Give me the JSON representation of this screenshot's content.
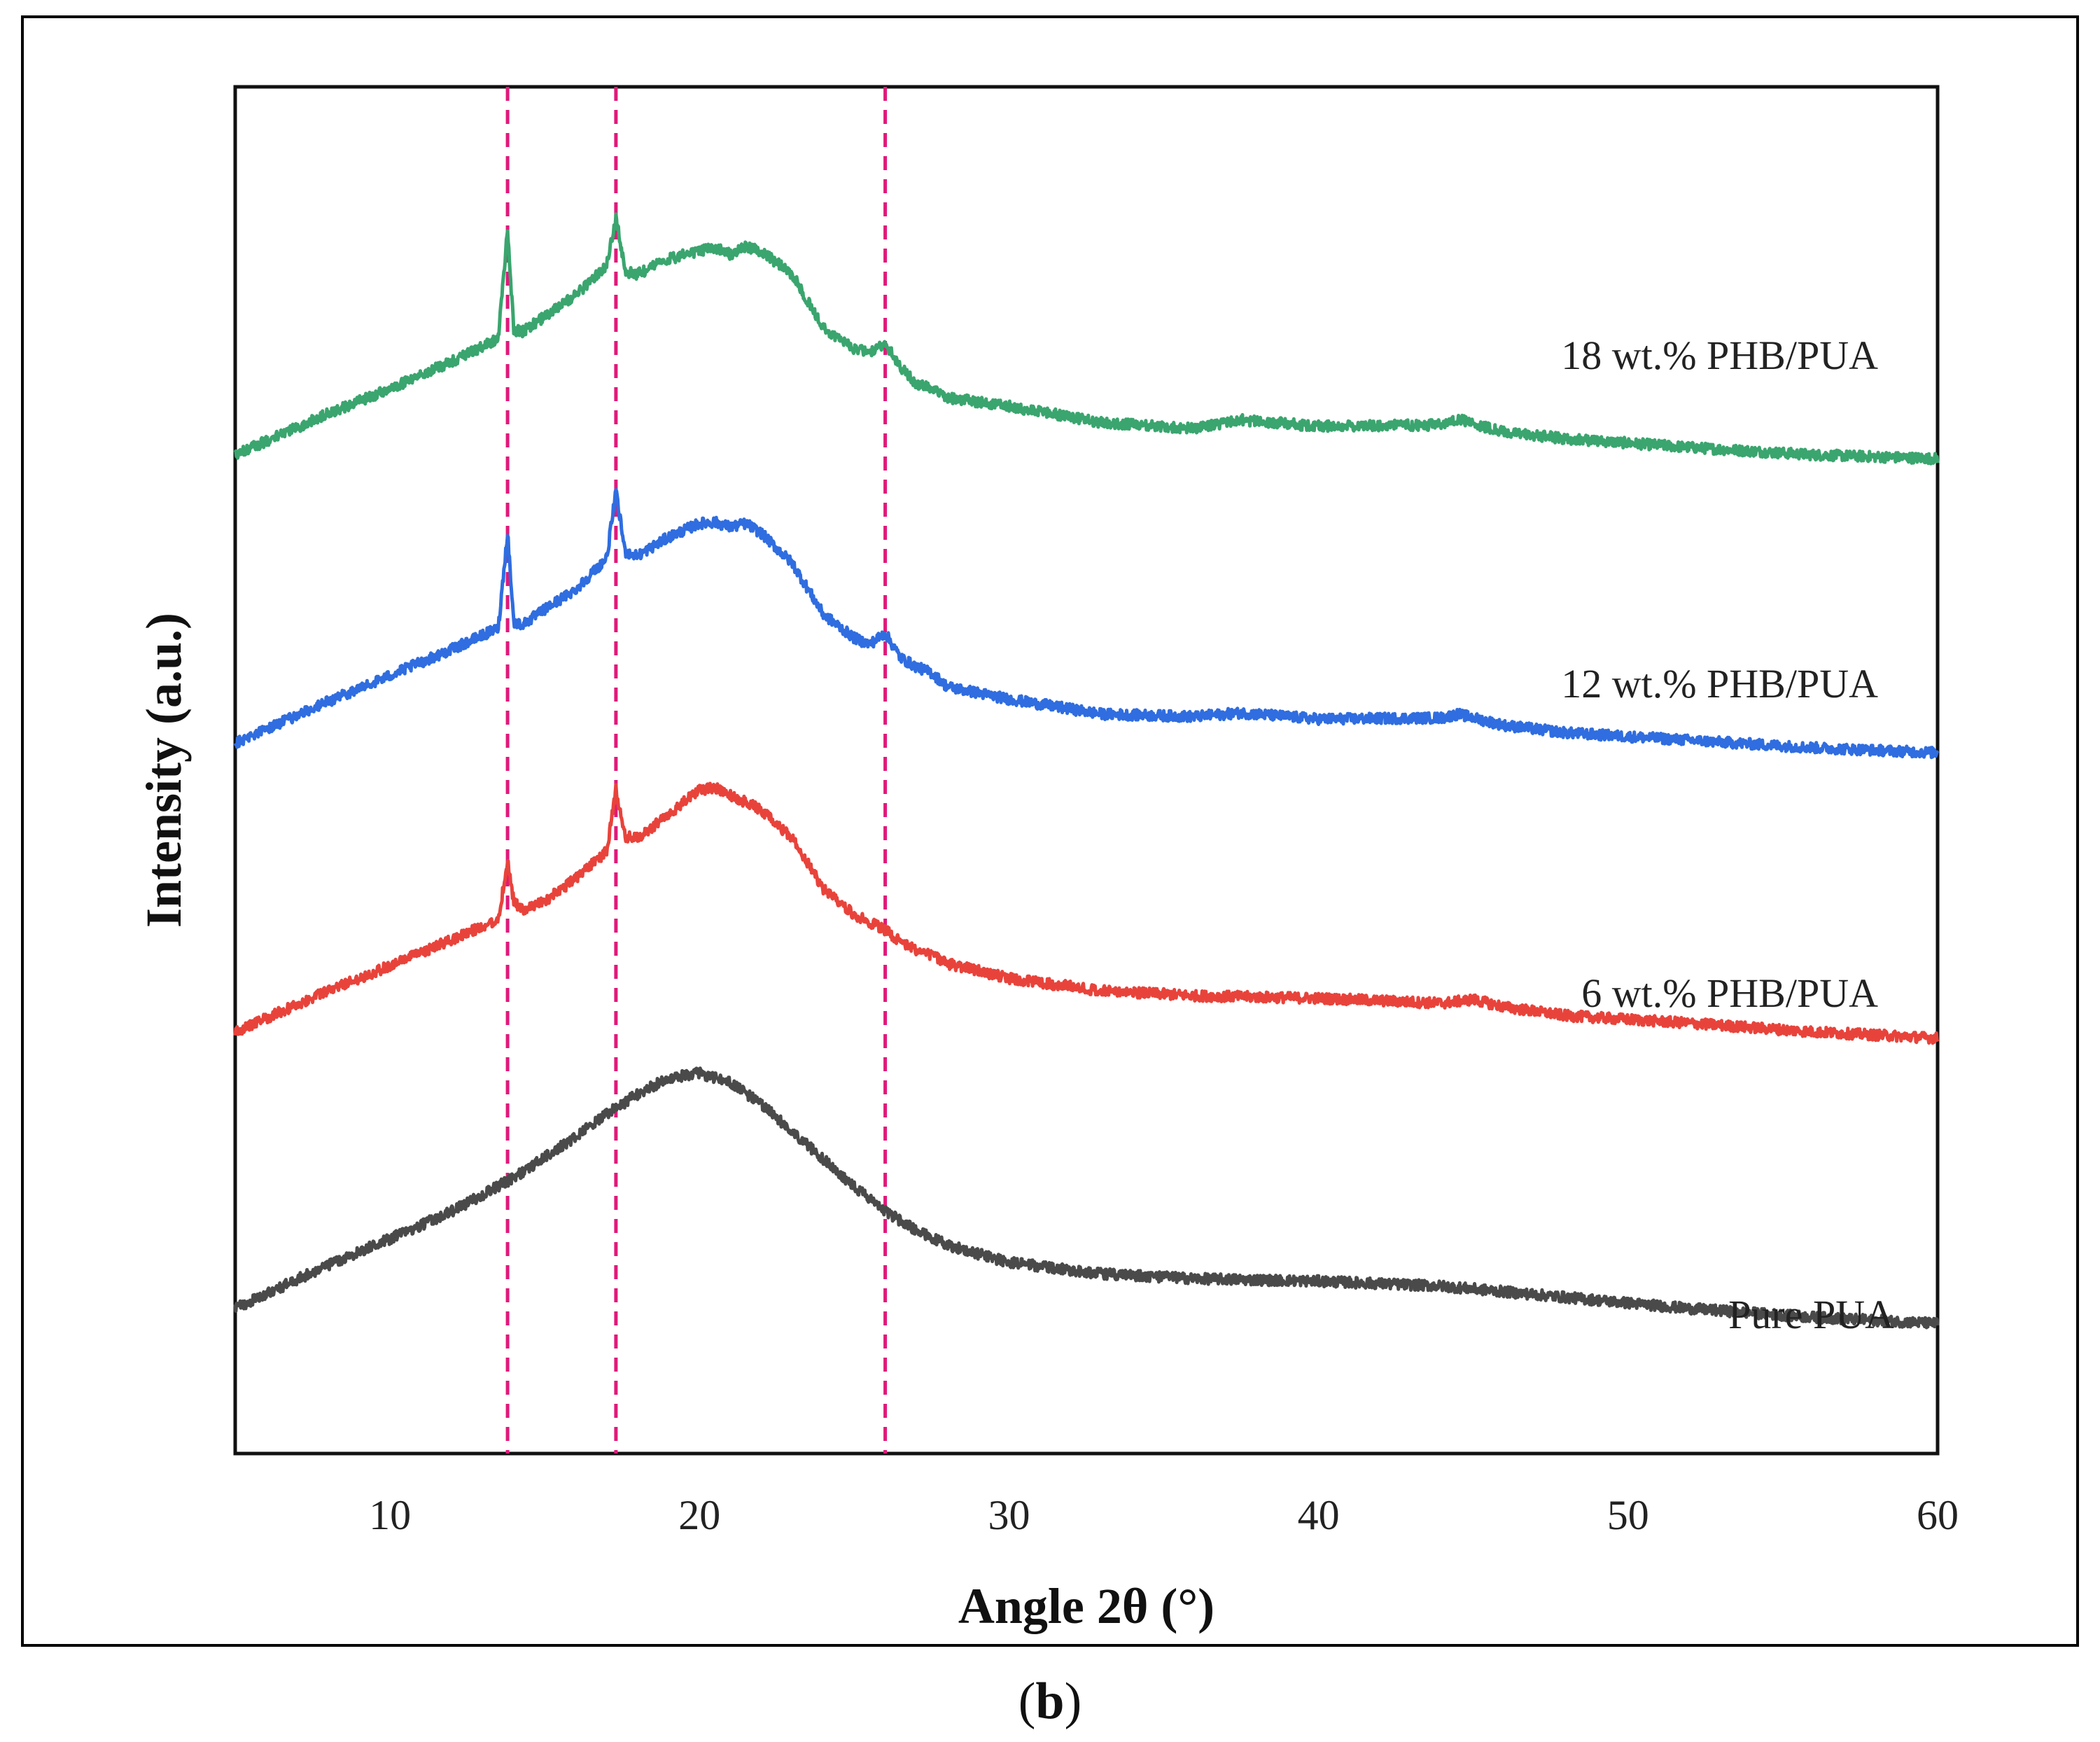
{
  "chart_data": {
    "type": "line",
    "title": "",
    "xlabel": "Angle 2θ  (°)",
    "ylabel": "Intensity (a.u.)",
    "xlim": [
      5,
      60
    ],
    "ylim": [
      0,
      1
    ],
    "xticks": [
      10,
      20,
      30,
      40,
      50,
      60
    ],
    "xtick_labels": [
      "10",
      "20",
      "30",
      "40",
      "50",
      "60"
    ],
    "yticks": [],
    "grid": false,
    "reference_lines": [
      {
        "x": 13.8,
        "color": "#e0197a",
        "style": "dashed"
      },
      {
        "x": 17.3,
        "color": "#e0197a",
        "style": "dashed"
      },
      {
        "x": 26.0,
        "color": "#e0197a",
        "style": "dashed"
      }
    ],
    "series": [
      {
        "name": "Pure PUA",
        "color": "#4a4a4a",
        "x": [
          5,
          8,
          10,
          12,
          14,
          16,
          17,
          18,
          19,
          20,
          21,
          22,
          23,
          24,
          25,
          26,
          27,
          28,
          30,
          33,
          36,
          40,
          44,
          48,
          52,
          56,
          60
        ],
        "y": [
          0.068,
          0.103,
          0.124,
          0.146,
          0.173,
          0.206,
          0.224,
          0.24,
          0.253,
          0.257,
          0.249,
          0.232,
          0.21,
          0.188,
          0.166,
          0.146,
          0.131,
          0.119,
          0.105,
          0.096,
          0.092,
          0.09,
          0.086,
          0.077,
          0.068,
          0.061,
          0.056
        ]
      },
      {
        "name": "6 wt.% PHB/PUA",
        "color": "#e8433b",
        "x": [
          5,
          8,
          10,
          12,
          13.5,
          13.8,
          14.0,
          14.3,
          15,
          16,
          17.0,
          17.3,
          17.6,
          18,
          19,
          20,
          20.5,
          21,
          22,
          23,
          24,
          25,
          26,
          26.5,
          27,
          27.5,
          28,
          30,
          33,
          36,
          40,
          44,
          45,
          46,
          48,
          52,
          56,
          60
        ],
        "y": [
          0.29,
          0.323,
          0.343,
          0.364,
          0.38,
          0.427,
          0.395,
          0.387,
          0.395,
          0.413,
          0.435,
          0.484,
          0.447,
          0.445,
          0.465,
          0.484,
          0.486,
          0.48,
          0.468,
          0.445,
          0.405,
          0.384,
          0.372,
          0.362,
          0.356,
          0.352,
          0.345,
          0.333,
          0.323,
          0.319,
          0.317,
          0.313,
          0.316,
          0.31,
          0.303,
          0.297,
          0.29,
          0.285
        ]
      },
      {
        "name": "12 wt.% PHB/PUA",
        "color": "#2f6de0",
        "x": [
          5,
          8,
          10,
          12,
          13.5,
          13.8,
          14.0,
          14.3,
          15,
          16,
          17.0,
          17.3,
          17.6,
          18,
          19,
          20,
          20.5,
          21,
          21.5,
          22,
          23,
          24,
          25,
          25.5,
          26,
          26.5,
          27,
          27.5,
          28,
          30,
          33,
          36,
          37.5,
          40,
          44,
          44.5,
          46,
          48,
          52,
          56,
          60
        ],
        "y": [
          0.522,
          0.555,
          0.576,
          0.597,
          0.614,
          0.691,
          0.618,
          0.617,
          0.629,
          0.645,
          0.67,
          0.723,
          0.675,
          0.672,
          0.687,
          0.698,
          0.699,
          0.695,
          0.698,
          0.69,
          0.666,
          0.625,
          0.606,
          0.601,
          0.61,
          0.59,
          0.583,
          0.578,
          0.567,
          0.557,
          0.545,
          0.543,
          0.546,
          0.541,
          0.542,
          0.545,
          0.536,
          0.53,
          0.524,
          0.518,
          0.514
        ]
      },
      {
        "name": "18 wt.% PHB/PUA",
        "color": "#3aa56e",
        "x": [
          5,
          8,
          10,
          12,
          13.5,
          13.8,
          14.0,
          14.3,
          15,
          16,
          17.0,
          17.3,
          17.6,
          18,
          19,
          20,
          20.5,
          21,
          21.5,
          22,
          23,
          24,
          25,
          25.5,
          26,
          26.5,
          27,
          27.5,
          28,
          30,
          33,
          36,
          37.5,
          40,
          44,
          44.5,
          46,
          48,
          52,
          56,
          60
        ],
        "y": [
          0.753,
          0.786,
          0.806,
          0.828,
          0.846,
          0.934,
          0.853,
          0.852,
          0.864,
          0.881,
          0.905,
          0.944,
          0.9,
          0.898,
          0.91,
          0.917,
          0.919,
          0.914,
          0.92,
          0.916,
          0.898,
          0.855,
          0.838,
          0.836,
          0.843,
          0.823,
          0.81,
          0.806,
          0.799,
          0.792,
          0.779,
          0.774,
          0.781,
          0.776,
          0.777,
          0.782,
          0.771,
          0.766,
          0.759,
          0.753,
          0.75
        ]
      }
    ],
    "annotations": [
      {
        "text": "18 wt.% PHB/PUA",
        "series": "18 wt.% PHB/PUA"
      },
      {
        "text": "12 wt.% PHB/PUA",
        "series": "12 wt.% PHB/PUA"
      },
      {
        "text": "6 wt.% PHB/PUA",
        "series": "6 wt.% PHB/PUA"
      },
      {
        "text": "Pure PUA",
        "series": "Pure PUA"
      }
    ]
  },
  "figure": {
    "caption_open": "(",
    "caption_letter": "b",
    "caption_close": ")"
  }
}
